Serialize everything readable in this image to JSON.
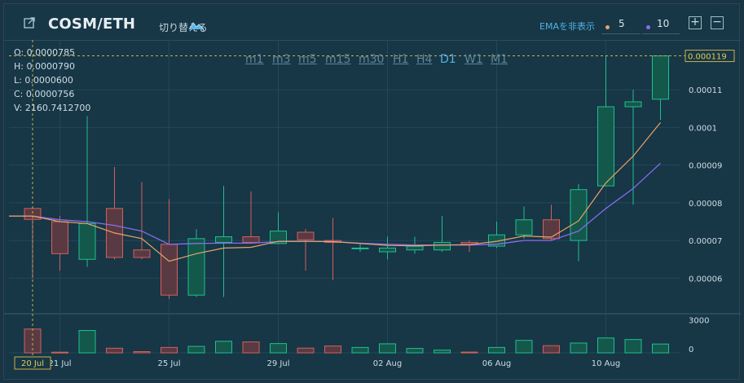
{
  "header": {
    "pair": "COSM/ETH",
    "switch_label": "切り替える",
    "ema_label": "EMAを非表示",
    "ema_short": "5",
    "ema_long": "10",
    "plus_label": "+",
    "minus_label": "−"
  },
  "ohlc": {
    "open": "O: 0.0000785",
    "high": "H: 0.0000790",
    "low": "L: 0.0000600",
    "close": "C: 0.0000756",
    "volume": "V: 2160.7412700"
  },
  "timeframes": [
    "m1",
    "m3",
    "m5",
    "m15",
    "m30",
    "H1",
    "H4",
    "D1",
    "W1",
    "M1"
  ],
  "active_timeframe": "D1",
  "colors": {
    "up": "#1fbf8f",
    "down": "#d2605b",
    "ema_short": "#e8a36a",
    "ema_long": "#8a6cf0",
    "crosshair": "#c7b24a",
    "grid": "#22495a"
  },
  "chart_data": {
    "type": "candlestick",
    "price_ticks": [
      "0.00006",
      "0.00007",
      "0.00008",
      "0.00009",
      "0.0001",
      "0.00011"
    ],
    "price_tick_values": [
      6e-05,
      7e-05,
      8e-05,
      9e-05,
      0.0001,
      0.00011
    ],
    "current_price_label": "0.000119",
    "current_price": 0.000119,
    "volume_ticks": [
      "3000",
      "0"
    ],
    "volume_tick_values": [
      3000,
      0
    ],
    "x_labels": [
      "21 Jul",
      "25 Jul",
      "29 Jul",
      "02 Aug",
      "06 Aug",
      "10 Aug"
    ],
    "x_label_index": [
      1,
      5,
      9,
      13,
      17,
      21
    ],
    "crosshair_label": "20 Jul",
    "crosshair_index": 0,
    "candles": [
      {
        "o": 7.85e-05,
        "h": 7.9e-05,
        "l": 6e-05,
        "c": 7.56e-05,
        "v": 2160
      },
      {
        "o": 7.5e-05,
        "h": 7.65e-05,
        "l": 6.2e-05,
        "c": 6.65e-05,
        "v": 60
      },
      {
        "o": 6.5e-05,
        "h": 0.000103,
        "l": 6.3e-05,
        "c": 7.45e-05,
        "v": 2030
      },
      {
        "o": 7.85e-05,
        "h": 8.95e-05,
        "l": 6.5e-05,
        "c": 6.55e-05,
        "v": 420
      },
      {
        "o": 6.75e-05,
        "h": 8.55e-05,
        "l": 6.5e-05,
        "c": 6.55e-05,
        "v": 110
      },
      {
        "o": 6.9e-05,
        "h": 8.1e-05,
        "l": 5.45e-05,
        "c": 5.55e-05,
        "v": 490
      },
      {
        "o": 5.55e-05,
        "h": 7.3e-05,
        "l": 5.5e-05,
        "c": 7.05e-05,
        "v": 590
      },
      {
        "o": 6.95e-05,
        "h": 8.45e-05,
        "l": 5.5e-05,
        "c": 7.1e-05,
        "v": 1050
      },
      {
        "o": 7.1e-05,
        "h": 8.3e-05,
        "l": 6.95e-05,
        "c": 6.95e-05,
        "v": 990
      },
      {
        "o": 6.92e-05,
        "h": 7.75e-05,
        "l": 6.9e-05,
        "c": 7.25e-05,
        "v": 840
      },
      {
        "o": 7.22e-05,
        "h": 7.3e-05,
        "l": 6.2e-05,
        "c": 7.02e-05,
        "v": 430
      },
      {
        "o": 7e-05,
        "h": 7.6e-05,
        "l": 5.95e-05,
        "c": 6.95e-05,
        "v": 620
      },
      {
        "o": 6.8e-05,
        "h": 6.92e-05,
        "l": 6.7e-05,
        "c": 6.8e-05,
        "v": 490
      },
      {
        "o": 6.7e-05,
        "h": 7.1e-05,
        "l": 6.5e-05,
        "c": 6.8e-05,
        "v": 820
      },
      {
        "o": 6.75e-05,
        "h": 7.1e-05,
        "l": 6.65e-05,
        "c": 6.85e-05,
        "v": 400
      },
      {
        "o": 6.75e-05,
        "h": 7.65e-05,
        "l": 6.7e-05,
        "c": 6.95e-05,
        "v": 250
      },
      {
        "o": 6.95e-05,
        "h": 7e-05,
        "l": 6.7e-05,
        "c": 6.9e-05,
        "v": 70
      },
      {
        "o": 6.85e-05,
        "h": 7.5e-05,
        "l": 6.8e-05,
        "c": 7.15e-05,
        "v": 490
      },
      {
        "o": 7.15e-05,
        "h": 7.9e-05,
        "l": 7.05e-05,
        "c": 7.55e-05,
        "v": 1130
      },
      {
        "o": 7.55e-05,
        "h": 7.95e-05,
        "l": 7e-05,
        "c": 7.05e-05,
        "v": 650
      },
      {
        "o": 7e-05,
        "h": 8.5e-05,
        "l": 6.45e-05,
        "c": 8.35e-05,
        "v": 890
      },
      {
        "o": 8.45e-05,
        "h": 0.000119,
        "l": 8.45e-05,
        "c": 0.0001055,
        "v": 1350
      },
      {
        "o": 0.0001055,
        "h": 0.00011,
        "l": 7.95e-05,
        "c": 0.0001068,
        "v": 1210
      },
      {
        "o": 0.0001075,
        "h": 0.000119,
        "l": 0.000102,
        "c": 0.000119,
        "v": 800
      }
    ],
    "ema5": [
      7.65e-05,
      7.5e-05,
      7.45e-05,
      7.2e-05,
      7.05e-05,
      6.45e-05,
      6.65e-05,
      6.8e-05,
      6.82e-05,
      6.98e-05,
      6.98e-05,
      6.97e-05,
      6.92e-05,
      6.87e-05,
      6.86e-05,
      6.88e-05,
      6.89e-05,
      6.98e-05,
      7.12e-05,
      7.09e-05,
      7.52e-05,
      8.53e-05,
      9.24e-05,
      0.0001013
    ],
    "ema10": [
      7.65e-05,
      7.55e-05,
      7.5e-05,
      7.4e-05,
      7.25e-05,
      6.9e-05,
      6.92e-05,
      6.93e-05,
      6.93e-05,
      6.97e-05,
      6.98e-05,
      6.97e-05,
      6.93e-05,
      6.9e-05,
      6.88e-05,
      6.88e-05,
      6.88e-05,
      6.9e-05,
      7e-05,
      7e-05,
      7.25e-05,
      7.85e-05,
      8.38e-05,
      9.05e-05
    ],
    "price_range": [
      5.1e-05,
      0.0001215
    ],
    "volume_range": [
      0,
      3400
    ]
  }
}
